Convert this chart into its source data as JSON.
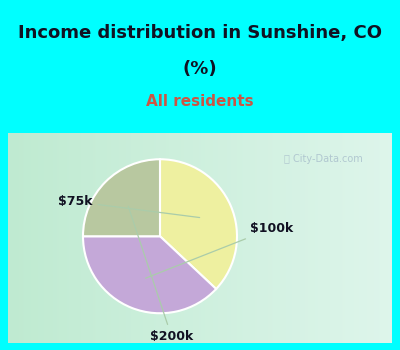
{
  "title_line1": "Income distribution in Sunshine, CO",
  "title_line2": "(%)",
  "subtitle": "All residents",
  "slices": [
    {
      "label": "$75k",
      "value": 37,
      "color": "#eef0a0"
    },
    {
      "label": "$100k",
      "value": 38,
      "color": "#c4a8d8"
    },
    {
      "label": "$200k",
      "value": 25,
      "color": "#b8c8a0"
    }
  ],
  "title_fontsize": 13,
  "subtitle_fontsize": 11,
  "title_color": "#111122",
  "subtitle_color": "#cc5544",
  "bg_cyan": "#00ffff",
  "chart_bg_color1": "#c8e8d8",
  "chart_bg_color2": "#f0f8f8",
  "watermark": "City-Data.com",
  "watermark_color": "#aac0cc",
  "label_color": "#111122",
  "label_fontsize": 9,
  "line_color": "#aaccaa",
  "border_cyan": "#00ffff"
}
